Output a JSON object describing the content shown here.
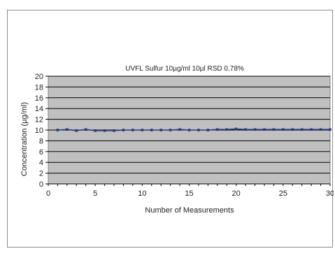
{
  "chart_data": {
    "type": "line",
    "title": "UVFL Sulfur 10µg/ml  10µl    RSD  0.78%",
    "xlabel": "Number of Measurements",
    "ylabel": "Concentration (µg/ml)",
    "xlim": [
      0,
      30
    ],
    "ylim": [
      0,
      20
    ],
    "x_ticks": [
      0,
      5,
      10,
      15,
      20,
      25,
      30
    ],
    "y_ticks": [
      0,
      2,
      4,
      6,
      8,
      10,
      12,
      14,
      16,
      18,
      20
    ],
    "grid": true,
    "legend": "none",
    "plot_background": "#c0c0c0",
    "series": [
      {
        "color": "#2b3a80",
        "x": [
          1,
          2,
          3,
          4,
          5,
          6,
          7,
          8,
          9,
          10,
          11,
          12,
          13,
          14,
          15,
          16,
          17,
          18,
          19,
          20,
          21,
          22,
          23,
          24,
          25,
          26,
          27,
          28,
          29,
          30
        ],
        "values": [
          10.0,
          10.1,
          9.9,
          10.1,
          9.9,
          9.9,
          9.9,
          10.0,
          10.0,
          10.0,
          10.0,
          10.0,
          10.0,
          10.1,
          10.0,
          10.0,
          10.0,
          10.1,
          10.1,
          10.2,
          10.1,
          10.1,
          10.1,
          10.1,
          10.1,
          10.1,
          10.1,
          10.1,
          10.1,
          10.1
        ]
      }
    ]
  }
}
